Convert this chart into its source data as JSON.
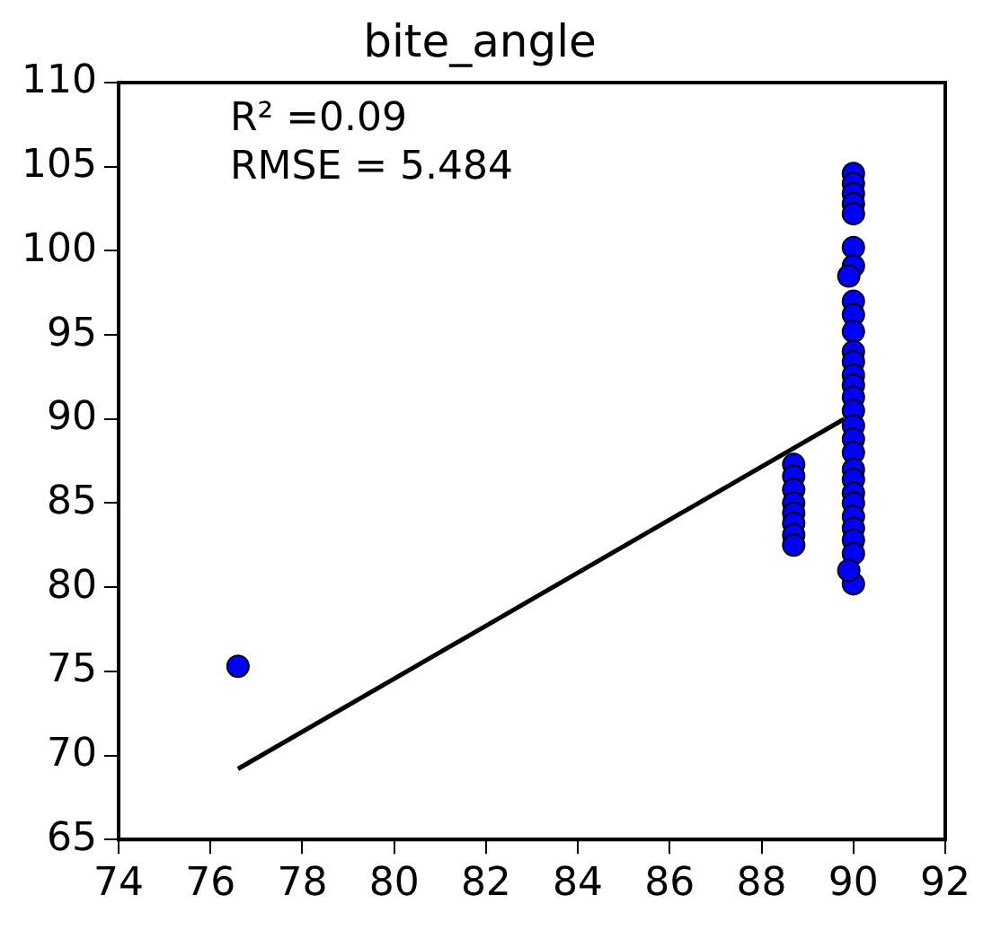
{
  "chart_data": {
    "type": "scatter",
    "title": "bite_angle",
    "xlim": [
      74,
      92
    ],
    "xticks": [
      74,
      76,
      78,
      80,
      82,
      84,
      86,
      88,
      90,
      92
    ],
    "ylim": [
      65,
      110
    ],
    "yticks": [
      65,
      70,
      75,
      80,
      85,
      90,
      95,
      100,
      105,
      110
    ],
    "grid": false,
    "legend": false,
    "annotations": [
      "R² =0.09",
      "RMSE = 5.484"
    ],
    "series": [
      {
        "color": "#0000ff",
        "marker": "circle",
        "x": [
          76.6,
          88.7,
          88.7,
          88.7,
          88.7,
          88.7,
          88.7,
          88.7,
          88.7,
          90,
          90,
          90,
          90,
          90,
          90,
          90,
          90,
          90,
          90,
          90,
          90,
          90,
          90,
          90,
          90,
          90,
          90,
          90,
          90,
          90,
          90,
          90,
          90,
          90,
          90,
          90,
          90,
          89.9,
          89.9
        ],
        "values": [
          75.3,
          87.3,
          86.6,
          85.8,
          85.0,
          84.4,
          83.8,
          83.1,
          82.5,
          104.6,
          104.0,
          103.4,
          102.8,
          102.2,
          100.2,
          99.1,
          97.0,
          96.2,
          95.2,
          94.0,
          93.4,
          92.6,
          92.0,
          91.3,
          90.5,
          89.6,
          88.8,
          88.0,
          87.0,
          86.4,
          85.6,
          85.0,
          84.2,
          83.5,
          82.8,
          82.0,
          80.2,
          98.5,
          81.0
        ]
      },
      {
        "type": "line",
        "marker": "none",
        "color": "#000000",
        "x": [
          76.6,
          89.8
        ],
        "values": [
          69.2,
          90.0
        ]
      }
    ]
  }
}
